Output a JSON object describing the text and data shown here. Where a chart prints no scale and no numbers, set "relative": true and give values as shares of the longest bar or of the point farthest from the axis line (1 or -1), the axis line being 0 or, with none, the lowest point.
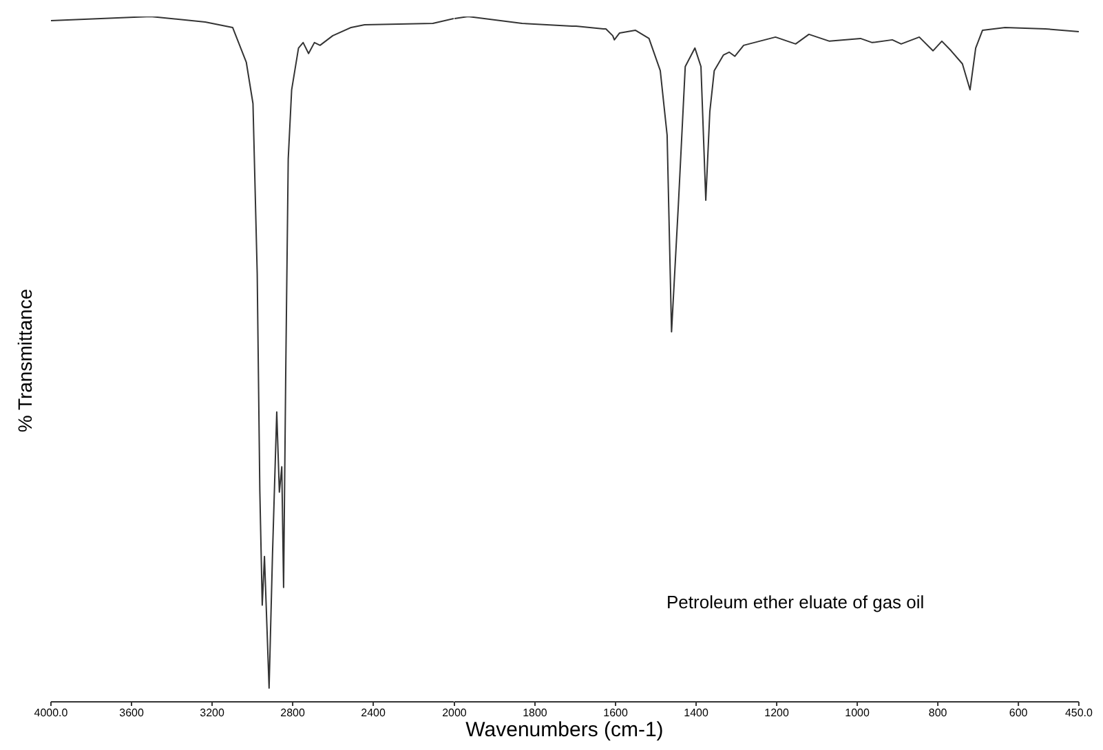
{
  "chart_data": [
    {
      "type": "line",
      "relative": true,
      "ylabel": "% Transmittance",
      "xlim": [
        4000,
        2000
      ],
      "xticks": [
        {
          "value": 4000,
          "label": "4000.0"
        },
        3600,
        3200,
        2800,
        2400
      ],
      "color": "#333333",
      "x": [
        4000,
        3505,
        3234,
        3098,
        3030,
        2997,
        2976,
        2963,
        2951,
        2940,
        2917,
        2900,
        2879,
        2866,
        2854,
        2845,
        2834,
        2822,
        2805,
        2771,
        2748,
        2721,
        2692,
        2664,
        2601,
        2510,
        2443,
        2104,
        2000
      ],
      "values": [
        0.994,
        1.0,
        0.992,
        0.984,
        0.933,
        0.873,
        0.625,
        0.308,
        0.141,
        0.212,
        0.02,
        0.216,
        0.423,
        0.306,
        0.343,
        0.167,
        0.49,
        0.792,
        0.893,
        0.954,
        0.962,
        0.946,
        0.962,
        0.958,
        0.972,
        0.984,
        0.988,
        0.99,
        0.997
      ]
    },
    {
      "type": "line",
      "relative": true,
      "xlabel": "Wavenumbers (cm-1)",
      "annotations": [
        "Petroleum ether eluate of gas oil"
      ],
      "xlim": [
        2000,
        450
      ],
      "xticks": [
        2000,
        1800,
        1600,
        1400,
        1200,
        1000,
        800,
        600,
        {
          "value": 450,
          "label": "450.0"
        }
      ],
      "color": "#333333",
      "x": [
        2000,
        1966,
        1832,
        1708,
        1698,
        1630,
        1624,
        1607,
        1603,
        1590,
        1551,
        1517,
        1489,
        1472,
        1461,
        1444,
        1427,
        1403,
        1388,
        1376,
        1366,
        1355,
        1332,
        1318,
        1304,
        1282,
        1203,
        1153,
        1120,
        1069,
        992,
        963,
        913,
        891,
        846,
        812,
        790,
        767,
        739,
        720,
        706,
        689,
        633,
        533,
        450
      ],
      "values": [
        0.997,
        1.0,
        0.99,
        0.986,
        0.986,
        0.982,
        0.982,
        0.972,
        0.966,
        0.976,
        0.98,
        0.968,
        0.921,
        0.827,
        0.54,
        0.726,
        0.927,
        0.954,
        0.927,
        0.732,
        0.861,
        0.921,
        0.944,
        0.948,
        0.942,
        0.958,
        0.97,
        0.96,
        0.974,
        0.964,
        0.968,
        0.962,
        0.966,
        0.96,
        0.97,
        0.95,
        0.964,
        0.95,
        0.931,
        0.893,
        0.954,
        0.98,
        0.984,
        0.982,
        0.978
      ]
    }
  ]
}
